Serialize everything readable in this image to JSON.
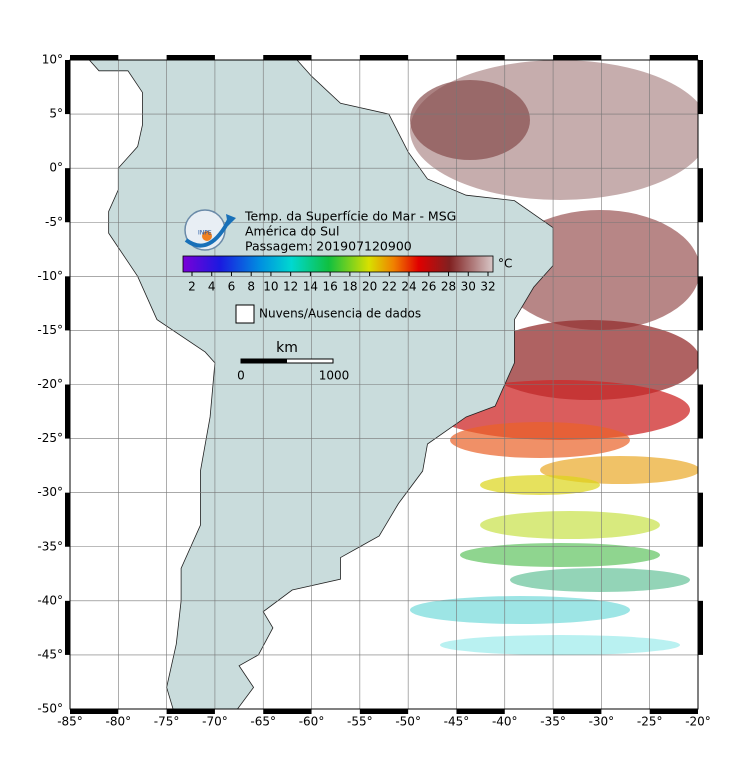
{
  "map": {
    "title": [
      "Temp. da Superfície do Mar - MSG",
      "América do Sul",
      "Passagem: 201907120900"
    ],
    "logo_text": "INPE",
    "colorbar": {
      "unit": "°C",
      "ticks": [
        "2",
        "4",
        "6",
        "8",
        "10",
        "12",
        "14",
        "16",
        "18",
        "20",
        "22",
        "24",
        "26",
        "28",
        "30",
        "32"
      ]
    },
    "legend": "Nuvens/Ausencia de dados",
    "scale_bar": {
      "unit": "km",
      "start": "0",
      "end": "1000"
    },
    "lon_labels": [
      "-85°",
      "-80°",
      "-75°",
      "-70°",
      "-65°",
      "-60°",
      "-55°",
      "-50°",
      "-45°",
      "-40°",
      "-35°",
      "-30°",
      "-25°",
      "-20°"
    ],
    "lat_labels": [
      "10°",
      "5°",
      "0°",
      "-5°",
      "-10°",
      "-15°",
      "-20°",
      "-25°",
      "-30°",
      "-35°",
      "-40°",
      "-45°",
      "-50°"
    ]
  }
}
